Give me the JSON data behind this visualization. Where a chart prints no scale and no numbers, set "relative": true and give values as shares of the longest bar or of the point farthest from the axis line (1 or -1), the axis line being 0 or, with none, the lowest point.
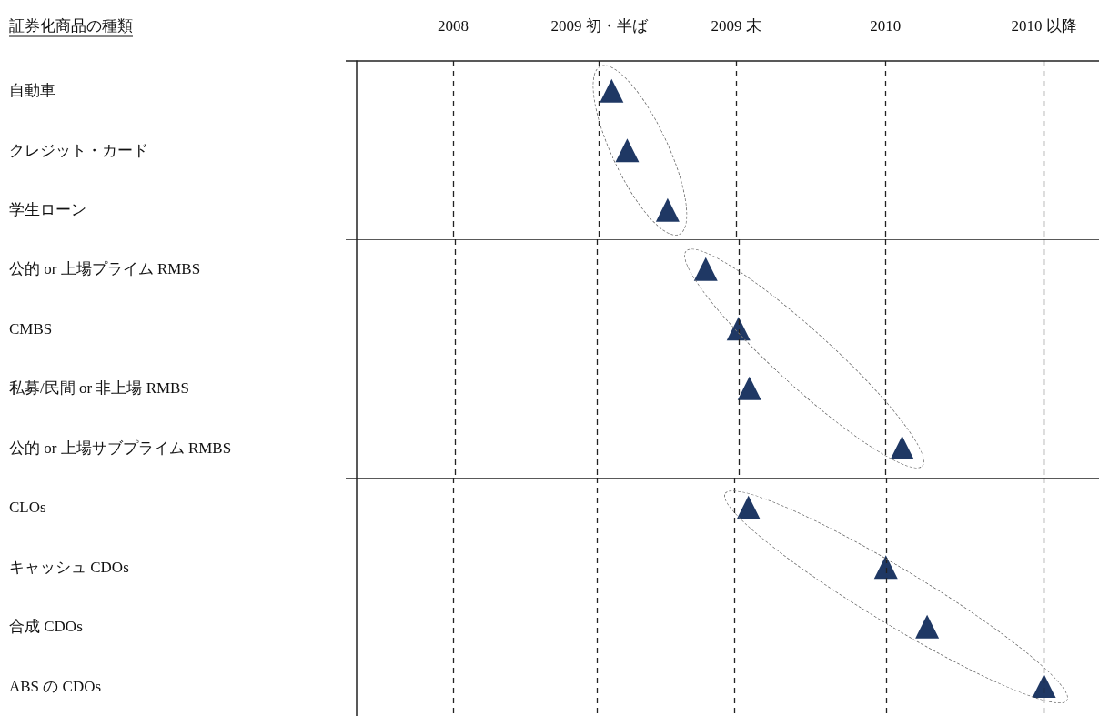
{
  "chart_data": [
    {
      "type": "scatter",
      "relative": true,
      "ylabel": "証券化商品の種類",
      "orientation": "horizontal",
      "categories": [
        "自動車",
        "クレジット・カード",
        "学生ローン"
      ],
      "values": [
        0.82,
        0.87,
        1
      ],
      "color": "#1f3864",
      "marker": "triangle",
      "annotations": [
        "2008",
        "2009 初・半ば",
        "2009 末",
        "2010",
        "2010 以降"
      ],
      "ref_lines": [
        {
          "axis": "x",
          "value": 0.31,
          "line_style": "dashed"
        },
        {
          "axis": "x",
          "value": 0.78,
          "line_style": "dashed"
        },
        {
          "axis": "x",
          "value": 1.22,
          "line_style": "dashed"
        },
        {
          "axis": "x",
          "value": 1.7,
          "line_style": "dashed"
        },
        {
          "axis": "x",
          "value": 2.21,
          "line_style": "dashed"
        }
      ]
    },
    {
      "type": "scatter",
      "relative": true,
      "orientation": "horizontal",
      "categories": [
        "公的 or 上場プライム RMBS",
        "CMBS",
        "私募/民間 or 非上場 RMBS",
        "公的 or 上場サブプライム RMBS"
      ],
      "values": [
        0.64,
        0.7,
        0.72,
        1
      ],
      "color": "#1f3864",
      "marker": "triangle",
      "ref_lines": [
        {
          "axis": "x",
          "value": 0.18,
          "line_style": "dashed"
        },
        {
          "axis": "x",
          "value": 0.44,
          "line_style": "dashed"
        },
        {
          "axis": "x",
          "value": 0.7,
          "line_style": "dashed"
        },
        {
          "axis": "x",
          "value": 0.97,
          "line_style": "dashed"
        },
        {
          "axis": "x",
          "value": 1.26,
          "line_style": "dashed"
        }
      ]
    },
    {
      "type": "scatter",
      "relative": true,
      "orientation": "horizontal",
      "categories": [
        "CLOs",
        "キャッシュ CDOs",
        "合成 CDOs",
        "ABS の CDOs"
      ],
      "values": [
        0.57,
        0.77,
        0.83,
        1
      ],
      "color": "#1f3864",
      "marker": "triangle",
      "ref_lines": [
        {
          "axis": "x",
          "value": 0.14,
          "line_style": "dashed"
        },
        {
          "axis": "x",
          "value": 0.35,
          "line_style": "dashed"
        },
        {
          "axis": "x",
          "value": 0.55,
          "line_style": "dashed"
        },
        {
          "axis": "x",
          "value": 0.77,
          "line_style": "dashed"
        },
        {
          "axis": "x",
          "value": 1,
          "line_style": "dashed"
        }
      ]
    }
  ]
}
